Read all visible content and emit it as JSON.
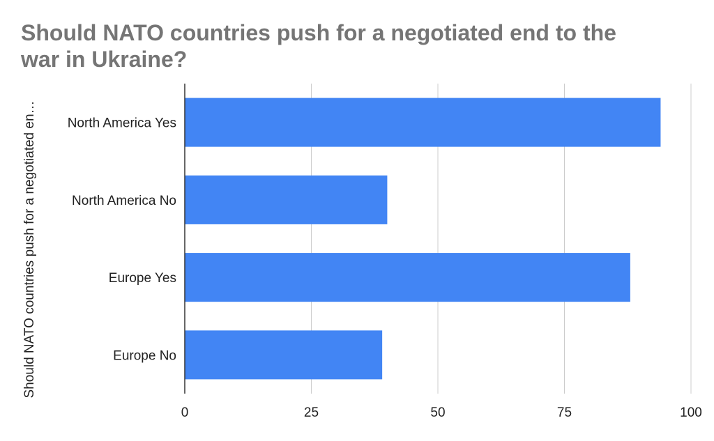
{
  "chart_data": {
    "type": "bar",
    "orientation": "horizontal",
    "title_lines": [
      " Should NATO countries push for a negotiated end to the",
      "war in Ukraine?"
    ],
    "ylabel": "Should NATO countries push for a negotiated en…",
    "xlabel": "",
    "categories": [
      "North America Yes",
      "North America No",
      "Europe Yes",
      "Europe No"
    ],
    "values": [
      94,
      40,
      88,
      39
    ],
    "xlim": [
      0,
      100
    ],
    "xticks": [
      0,
      25,
      50,
      75,
      100
    ],
    "grid": true,
    "legend": "none",
    "bar_color": "#4285f4"
  }
}
